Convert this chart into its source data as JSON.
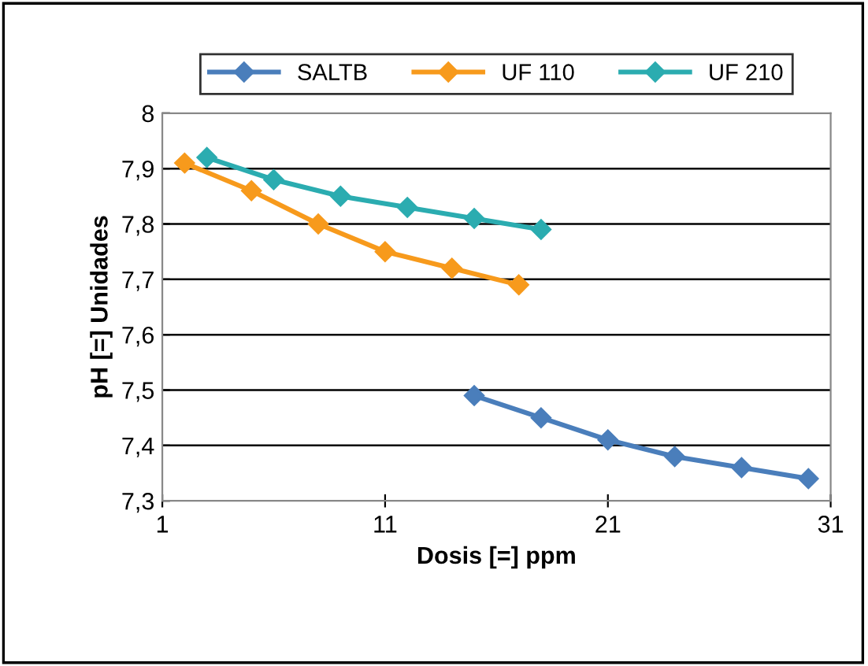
{
  "chart_data": {
    "type": "line",
    "xlabel": "Dosis [=] ppm",
    "ylabel": "pH [=] Unidades",
    "series": [
      {
        "name": "SALTB",
        "color": "#4a7ebb",
        "x": [
          15,
          18,
          21,
          24,
          27,
          30
        ],
        "values": [
          7.49,
          7.45,
          7.41,
          7.38,
          7.36,
          7.34
        ]
      },
      {
        "name": "UF 110",
        "color": "#f79a1c",
        "x": [
          2,
          5,
          8,
          11,
          14,
          17
        ],
        "values": [
          7.91,
          7.86,
          7.8,
          7.75,
          7.72,
          7.69
        ]
      },
      {
        "name": "UF 210",
        "color": "#2bacb0",
        "x": [
          3,
          6,
          9,
          12,
          15,
          18
        ],
        "values": [
          7.92,
          7.88,
          7.85,
          7.83,
          7.81,
          7.79
        ]
      }
    ],
    "xlim": [
      1,
      31
    ],
    "xticks": [
      1,
      11,
      21,
      31
    ],
    "ylim": [
      7.3,
      8
    ],
    "yticks": [
      {
        "value": 7.3,
        "label": "7,3"
      },
      {
        "value": 7.4,
        "label": "7,4"
      },
      {
        "value": 7.5,
        "label": "7,5"
      },
      {
        "value": 7.6,
        "label": "7,6"
      },
      {
        "value": 7.7,
        "label": "7,7"
      },
      {
        "value": 7.8,
        "label": "7,8"
      },
      {
        "value": 7.9,
        "label": "7,9"
      },
      {
        "value": 8,
        "label": "8"
      }
    ],
    "grid": "y",
    "legend": "top",
    "marker": "diamond",
    "line_style": "solid"
  }
}
